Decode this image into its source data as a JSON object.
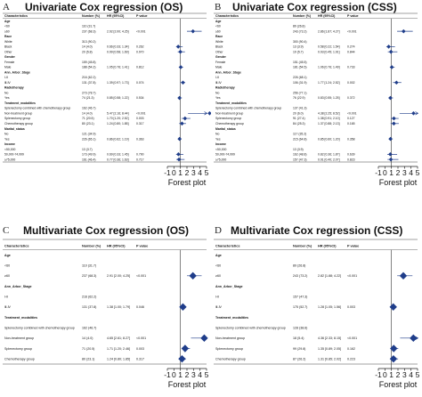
{
  "chart_data": [
    {
      "type": "forest",
      "panel_label": "A",
      "title": "Univariate Cox regression (OS)",
      "headers": [
        "Characteristics",
        "Number (%)",
        "HR (95%CI)",
        "P value"
      ],
      "xlabel": "Forest plot",
      "ticks": [
        "-1",
        "0",
        "1",
        "2",
        "3",
        "4",
        "5"
      ],
      "xlim": [
        -1,
        5
      ],
      "ref": 1,
      "rows": [
        {
          "label": "Age",
          "bold": true
        },
        {
          "label": "<60",
          "n": "110 (31.7)",
          "hr": "",
          "p": ""
        },
        {
          "label": "≥60",
          "n": "237 (68.3)",
          "hr": "2.92 [2.00; 4.25]",
          "p": "<0.001",
          "est": 2.92,
          "lo": 2.0,
          "hi": 4.25
        },
        {
          "label": "Race",
          "bold": true
        },
        {
          "label": "White",
          "n": "313 (90.2)",
          "hr": "",
          "p": ""
        },
        {
          "label": "Black",
          "n": "14 (4.0)",
          "hr": "0.66 [0.33; 1.34]",
          "p": "0.262",
          "est": 0.66,
          "lo": 0.33,
          "hi": 1.34
        },
        {
          "label": "Other",
          "n": "20 (5.8)",
          "hr": "0.99 [0.58; 1.69]",
          "p": "0.970",
          "est": 0.99,
          "lo": 0.58,
          "hi": 1.69
        },
        {
          "label": "Gender",
          "bold": true
        },
        {
          "label": "Female",
          "n": "159 (45.8)",
          "hr": "",
          "p": ""
        },
        {
          "label": "Male",
          "n": "188 (54.2)",
          "hr": "1.05 [0.76; 1.41]",
          "p": "0.812",
          "est": 1.05,
          "lo": 0.76,
          "hi": 1.41
        },
        {
          "label": "Ann_Arbor_Stage",
          "bold": true
        },
        {
          "label": "Ⅰ-Ⅱ",
          "n": "216 (62.2)",
          "hr": "",
          "p": ""
        },
        {
          "label": "Ⅲ-Ⅳ",
          "n": "131 (37.8)",
          "hr": "1.39 [0.97; 1.73]",
          "p": "0.074",
          "est": 1.39,
          "lo": 0.97,
          "hi": 1.73
        },
        {
          "label": "Radiotherapy",
          "bold": true
        },
        {
          "label": "No",
          "n": "273 (78.7)",
          "hr": "",
          "p": ""
        },
        {
          "label": "Yes",
          "n": "74 (21.3)",
          "hr": "0.85 [0.58; 1.22]",
          "p": "0.534",
          "est": 0.85,
          "lo": 0.58,
          "hi": 1.22
        },
        {
          "label": "Treatment_modalities",
          "bold": true
        },
        {
          "label": "Splenectomy combined with chemotherapy group",
          "n": "162 (46.7)",
          "hr": "",
          "p": ""
        },
        {
          "label": "Non-treatment group",
          "n": "14 (4.0)",
          "hr": "5.47 [2.16; 8.44]",
          "p": "<0.001",
          "est": 5.47,
          "lo": 2.16,
          "hi": 8.44
        },
        {
          "label": "Splenectomy group",
          "n": "71 (20.5)",
          "hr": "1.70 [1.20; 2.52]",
          "p": "0.003",
          "est": 1.7,
          "lo": 1.2,
          "hi": 2.52
        },
        {
          "label": "Chemotherapy group",
          "n": "80 (23.1)",
          "hr": "1.24 [0.80; 1.85]",
          "p": "0.317",
          "est": 1.24,
          "lo": 0.8,
          "hi": 1.85
        },
        {
          "label": "Marital_status",
          "bold": true
        },
        {
          "label": "No",
          "n": "121 (34.9)",
          "hr": "",
          "p": ""
        },
        {
          "label": "Yes",
          "n": "226 (65.1)",
          "hr": "0.86 [0.62; 1.19]",
          "p": "0.363",
          "est": 0.86,
          "lo": 0.62,
          "hi": 1.19
        },
        {
          "label": "Income",
          "bold": true
        },
        {
          "label": "<50,000",
          "n": "13 (3.7)",
          "hr": "",
          "p": ""
        },
        {
          "label": "50,000-74,999",
          "n": "173 (49.9)",
          "hr": "0.69 [0.33; 1.45]",
          "p": "0.790",
          "est": 0.69,
          "lo": 0.33,
          "hi": 1.45
        },
        {
          "label": "≥75,000",
          "n": "161 (46.4)",
          "hr": "0.77 [0.36; 1.63]",
          "p": "0.717",
          "est": 0.77,
          "lo": 0.36,
          "hi": 1.63
        }
      ]
    },
    {
      "type": "forest",
      "panel_label": "B",
      "title": "Univariate Cox regression (CSS)",
      "headers": [
        "Characteristics",
        "Number (%)",
        "HR (95%CI)",
        "P value"
      ],
      "xlabel": "Forest plot",
      "ticks": [
        "-1",
        "0",
        "1",
        "2",
        "3",
        "4",
        "5"
      ],
      "xlim": [
        -1,
        5
      ],
      "ref": 1,
      "rows": [
        {
          "label": "Age",
          "bold": true
        },
        {
          "label": "<60",
          "n": "89 (26.8)",
          "hr": "",
          "p": ""
        },
        {
          "label": "≥60",
          "n": "243 (73.2)",
          "hr": "2.86 [1.87; 4.27]",
          "p": "<0.001",
          "est": 2.86,
          "lo": 1.87,
          "hi": 4.27
        },
        {
          "label": "Race",
          "bold": true
        },
        {
          "label": "White",
          "n": "300 (90.4)",
          "hr": "",
          "p": ""
        },
        {
          "label": "Black",
          "n": "13 (3.9)",
          "hr": "0.58 [0.22; 1.54]",
          "p": "0.274",
          "est": 0.58,
          "lo": 0.22,
          "hi": 1.54
        },
        {
          "label": "Other",
          "n": "19 (5.7)",
          "hr": "0.93 [0.45; 1.91]",
          "p": "0.844",
          "est": 0.93,
          "lo": 0.45,
          "hi": 1.91
        },
        {
          "label": "Gender",
          "bold": true
        },
        {
          "label": "Female",
          "n": "151 (45.5)",
          "hr": "",
          "p": ""
        },
        {
          "label": "Male",
          "n": "181 (54.5)",
          "hr": "1.06 [0.76; 1.49]",
          "p": "0.733",
          "est": 1.06,
          "lo": 0.76,
          "hi": 1.49
        },
        {
          "label": "Ann_Arbor_Stage",
          "bold": true
        },
        {
          "label": "Ⅰ-Ⅱ",
          "n": "226 (68.1)",
          "hr": "",
          "p": ""
        },
        {
          "label": "Ⅲ-Ⅳ",
          "n": "106 (31.9)",
          "hr": "1.77 [1.24; 2.52]",
          "p": "0.002",
          "est": 1.77,
          "lo": 1.24,
          "hi": 2.52
        },
        {
          "label": "Radiotherapy",
          "bold": true
        },
        {
          "label": "No",
          "n": "256 (77.1)",
          "hr": "",
          "p": ""
        },
        {
          "label": "Yes",
          "n": "76 (22.9)",
          "hr": "0.83 [0.55; 1.25]",
          "p": "0.372",
          "est": 0.83,
          "lo": 0.55,
          "hi": 1.25
        },
        {
          "label": "Treatment_modalities",
          "bold": true
        },
        {
          "label": "Splenectomy combined with chemotherapy group",
          "n": "137 (41.3)",
          "hr": "",
          "p": ""
        },
        {
          "label": "Non-treatment group",
          "n": "20 (6.0)",
          "hr": "4.38 [2.25; 8.52]",
          "p": "<0.001",
          "est": 4.38,
          "lo": 2.25,
          "hi": 8.52
        },
        {
          "label": "Splenectomy group",
          "n": "91 (27.4)",
          "hr": "1.38 [0.91; 2.10]",
          "p": "0.127",
          "est": 1.38,
          "lo": 0.91,
          "hi": 2.1
        },
        {
          "label": "Chemotherapy group",
          "n": "84 (25.3)",
          "hr": "1.37 [0.88; 2.13]",
          "p": "0.165",
          "est": 1.37,
          "lo": 0.88,
          "hi": 2.13
        },
        {
          "label": "Marital_status",
          "bold": true
        },
        {
          "label": "No",
          "n": "117 (35.2)",
          "hr": "",
          "p": ""
        },
        {
          "label": "Yes",
          "n": "215 (64.8)",
          "hr": "0.85 [0.60; 1.20]",
          "p": "0.358",
          "est": 0.85,
          "lo": 0.6,
          "hi": 1.2
        },
        {
          "label": "Income",
          "bold": true
        },
        {
          "label": "<50,000",
          "n": "13 (3.9)",
          "hr": "",
          "p": ""
        },
        {
          "label": "50,000-74,999",
          "n": "162 (48.8)",
          "hr": "0.82 [0.36; 1.87]",
          "p": "0.639",
          "est": 0.82,
          "lo": 0.36,
          "hi": 1.87
        },
        {
          "label": "≥75,000",
          "n": "157 (47.3)",
          "hr": "0.91 [0.40; 2.07]",
          "p": "0.823",
          "est": 0.91,
          "lo": 0.4,
          "hi": 2.07
        }
      ]
    },
    {
      "type": "forest",
      "panel_label": "C",
      "title": "Multivariate Cox regression (OS)",
      "headers": [
        "Characteristics",
        "Number (%)",
        "HR (95%CI)",
        "P value"
      ],
      "xlabel": "Forest plot",
      "ticks": [
        "-1",
        "0",
        "1",
        "2",
        "3",
        "4",
        "5"
      ],
      "xlim": [
        -1,
        5
      ],
      "ref": 1,
      "rows": [
        {
          "label": "Age",
          "bold": true
        },
        {
          "label": "<60",
          "n": "110 (31.7)",
          "hr": "",
          "p": ""
        },
        {
          "label": "≥60",
          "n": "237 (68.3)",
          "hr": "2.91 [2.00; 4.25]",
          "p": "<0.001",
          "est": 2.91,
          "lo": 2.0,
          "hi": 4.25
        },
        {
          "label": "Ann_Arbor_Stage",
          "bold": true
        },
        {
          "label": "Ⅰ-Ⅱ",
          "n": "216 (62.2)",
          "hr": "",
          "p": ""
        },
        {
          "label": "Ⅲ-Ⅳ",
          "n": "131 (37.8)",
          "hr": "1.38 [1.00; 1.79]",
          "p": "0.046",
          "est": 1.38,
          "lo": 1.0,
          "hi": 1.79
        },
        {
          "label": "Treatment_modalities",
          "bold": true
        },
        {
          "label": "Splenectomy combined with chemotherapy group",
          "n": "162 (46.7)",
          "hr": "",
          "p": ""
        },
        {
          "label": "Non-treatment group",
          "n": "14 (4.0)",
          "hr": "4.65 [2.61; 8.27]",
          "p": "<0.001",
          "est": 4.65,
          "lo": 2.61,
          "hi": 8.27
        },
        {
          "label": "Splenectomy group",
          "n": "71 (20.5)",
          "hr": "1.71 [1.20; 2.46]",
          "p": "0.003",
          "est": 1.71,
          "lo": 1.2,
          "hi": 2.46
        },
        {
          "label": "Chemotherapy group",
          "n": "80 (23.1)",
          "hr": "1.24 [0.80; 1.85]",
          "p": "0.317",
          "est": 1.24,
          "lo": 0.8,
          "hi": 1.85
        }
      ]
    },
    {
      "type": "forest",
      "panel_label": "D",
      "title": "Multivariate Cox regression (CSS)",
      "headers": [
        "Characteristics",
        "Number (%)",
        "HR (95%CI)",
        "P value"
      ],
      "xlabel": "Forest plot",
      "ticks": [
        "-1",
        "0",
        "1",
        "2",
        "3",
        "4",
        "5"
      ],
      "xlim": [
        -1,
        5
      ],
      "ref": 1,
      "rows": [
        {
          "label": "Age",
          "bold": true
        },
        {
          "label": "<60",
          "n": "89 (26.8)",
          "hr": "",
          "p": ""
        },
        {
          "label": "≥60",
          "n": "243 (73.2)",
          "hr": "2.82 [1.88; 4.22]",
          "p": "<0.001",
          "est": 2.82,
          "lo": 1.88,
          "hi": 4.22
        },
        {
          "label": "Ann_Arbor_Stage",
          "bold": true
        },
        {
          "label": "Ⅰ-Ⅱ",
          "n": "157 (47.3)",
          "hr": "",
          "p": ""
        },
        {
          "label": "Ⅲ-Ⅳ",
          "n": "175 (52.7)",
          "hr": "1.28 [1.05; 1.56]",
          "p": "0.003",
          "est": 1.28,
          "lo": 1.05,
          "hi": 1.56
        },
        {
          "label": "Treatment_modalities",
          "bold": true
        },
        {
          "label": "Splenectomy combined with chemotherapy group",
          "n": "128 (38.6)",
          "hr": "",
          "p": ""
        },
        {
          "label": "Non-treatment group",
          "n": "18 (5.4)",
          "hr": "4.36 [2.33; 8.15]",
          "p": "<0.001",
          "est": 4.36,
          "lo": 2.33,
          "hi": 8.15
        },
        {
          "label": "Splenectomy group",
          "n": "99 (29.8)",
          "hr": "1.35 [0.89; 2.05]",
          "p": "0.162",
          "est": 1.35,
          "lo": 0.89,
          "hi": 2.05
        },
        {
          "label": "Chemotherapy group",
          "n": "87 (26.2)",
          "hr": "1.31 [0.85; 2.02]",
          "p": "0.223",
          "est": 1.31,
          "lo": 0.85,
          "hi": 2.02
        }
      ]
    }
  ],
  "colors": {
    "marker": "#1f3d8a",
    "text": "#111111",
    "rule": "#444444"
  }
}
